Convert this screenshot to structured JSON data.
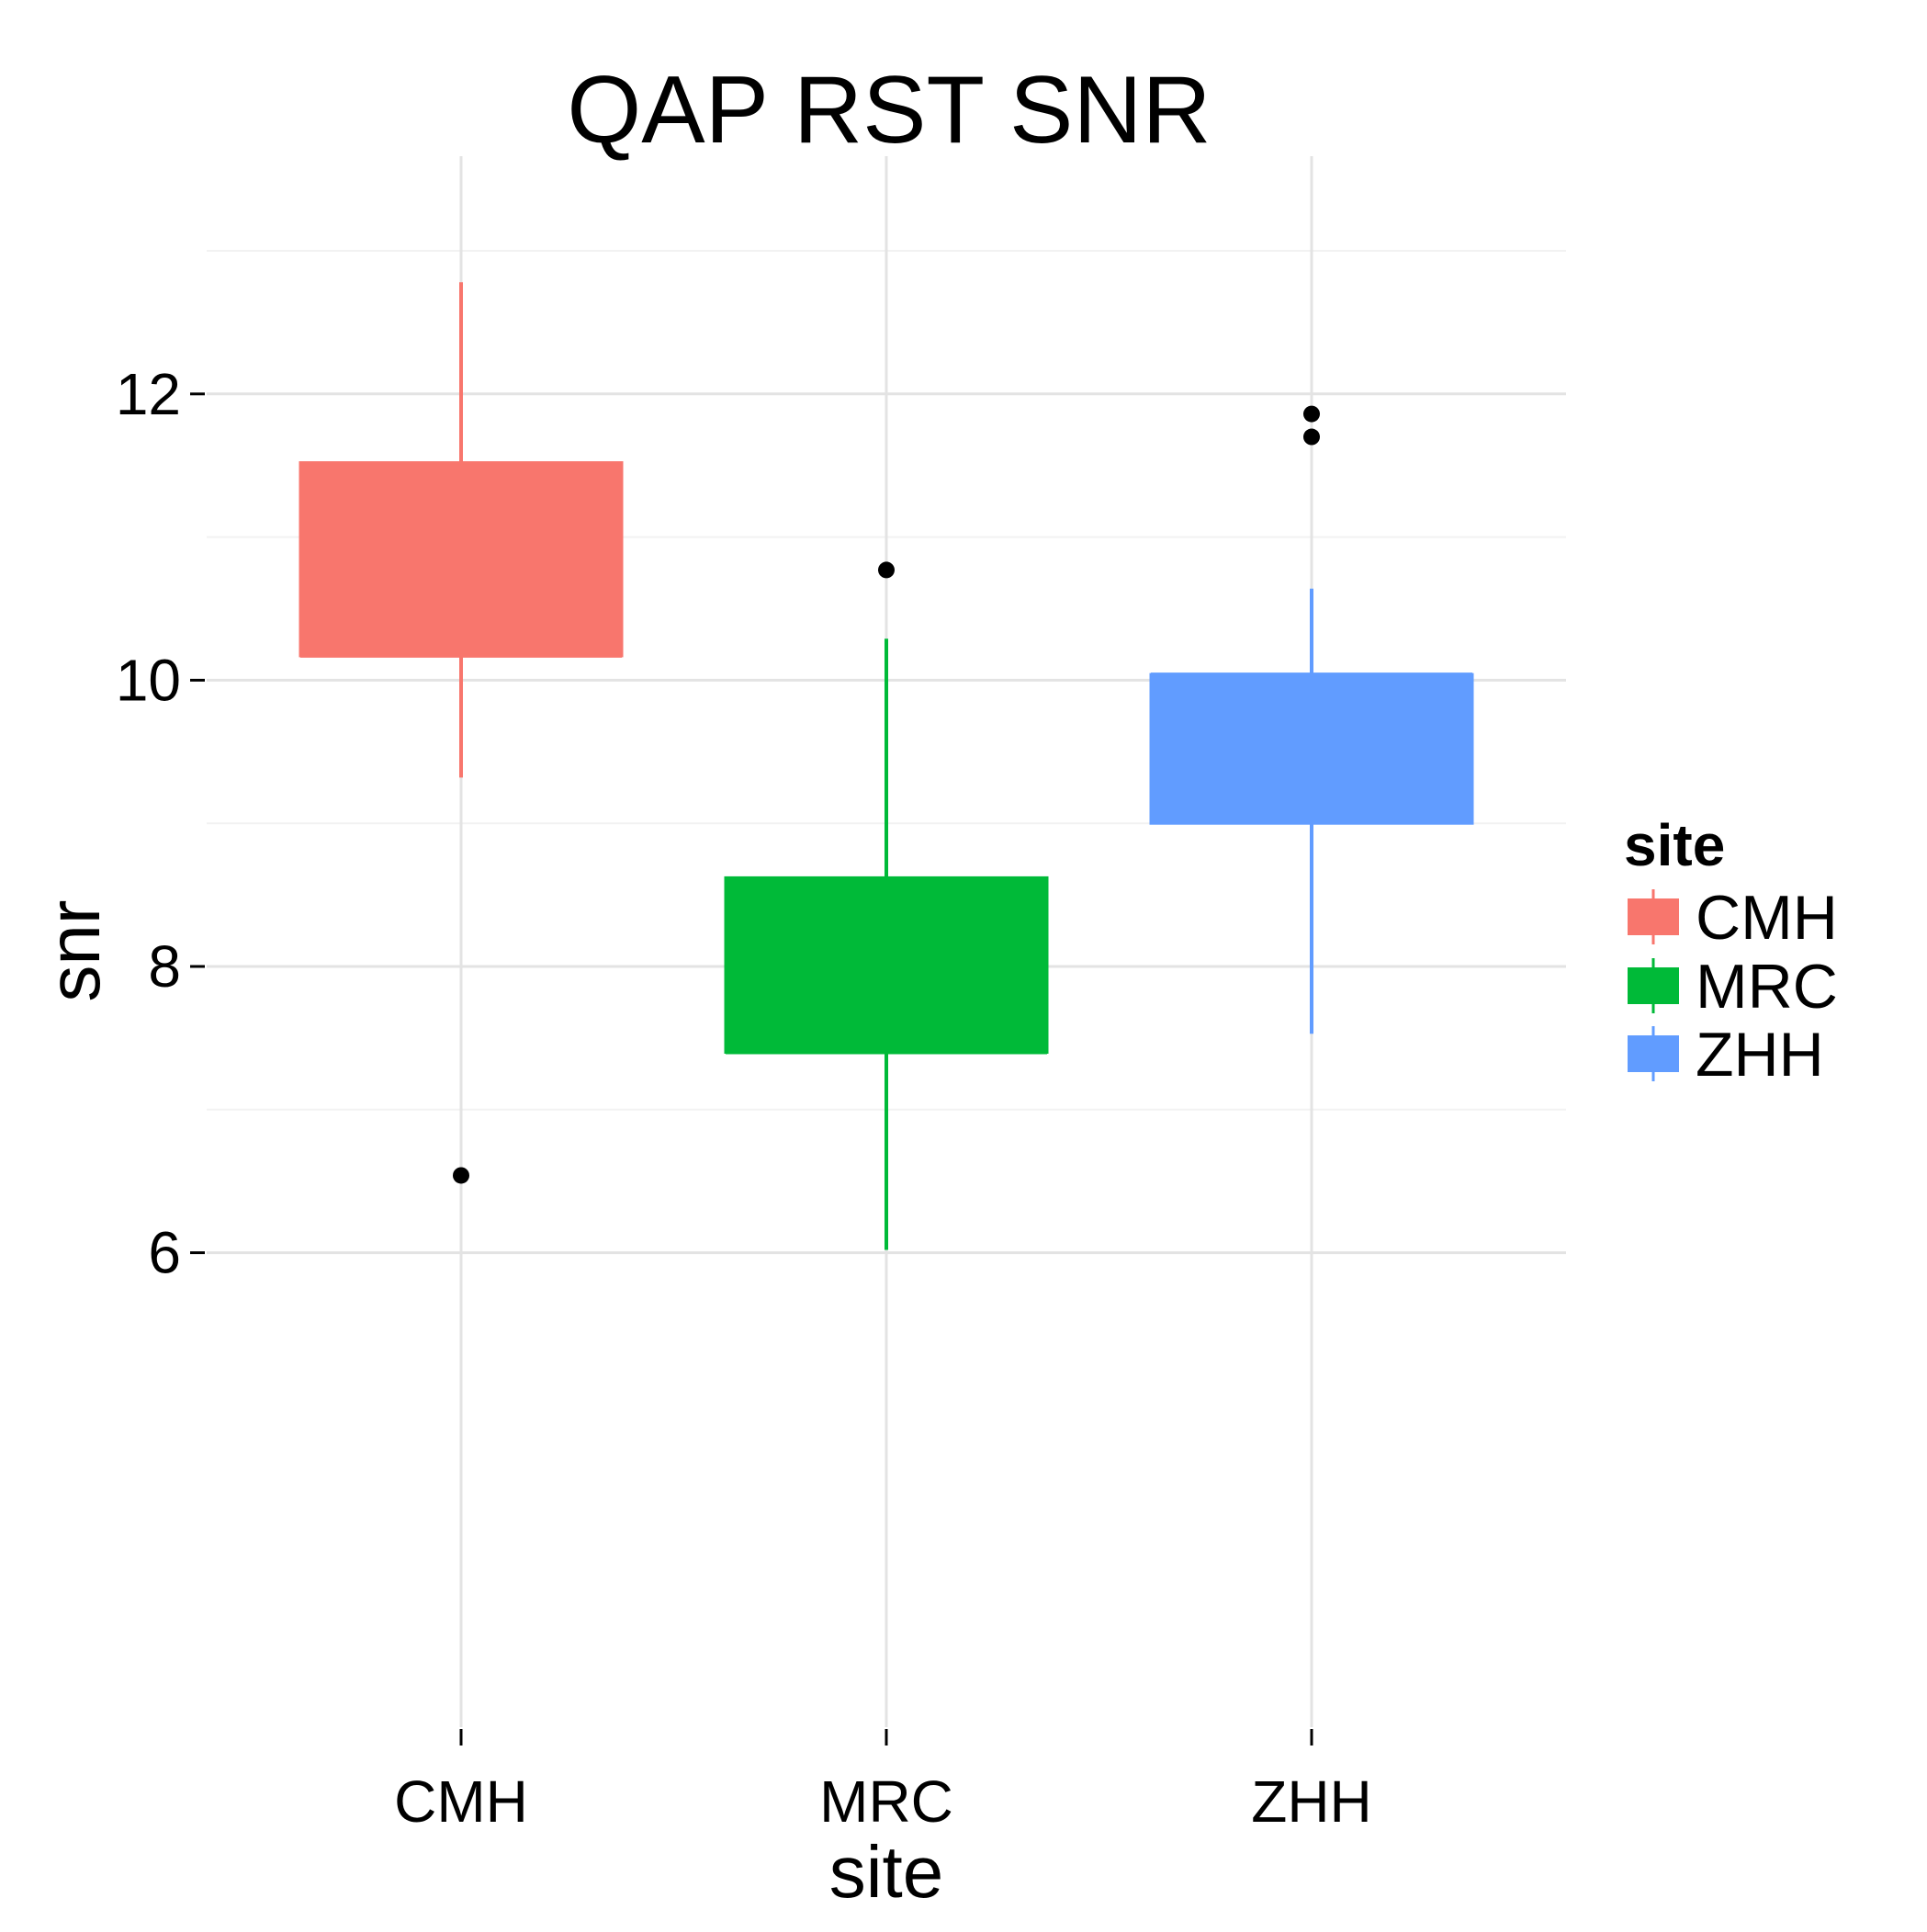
{
  "chart_data": {
    "type": "boxplot",
    "title": "QAP RST SNR",
    "xlabel": "site",
    "ylabel": "snr",
    "categories": [
      "CMH",
      "MRC",
      "ZHH"
    ],
    "ylim": [
      5.7,
      13.3
    ],
    "yticks": [
      6,
      8,
      10,
      12
    ],
    "ytick_labels": [
      "6",
      "8",
      "10",
      "12"
    ],
    "grid": true,
    "legend": {
      "title": "site",
      "position": "right",
      "entries": [
        "CMH",
        "MRC",
        "ZHH"
      ]
    },
    "series": [
      {
        "name": "CMH",
        "color": "#F8766D",
        "whisker_low": 9.32,
        "q1": 10.17,
        "median": 10.17,
        "q3": 11.52,
        "whisker_high": 12.78,
        "outliers": [
          6.54
        ]
      },
      {
        "name": "MRC",
        "color": "#00BA38",
        "whisker_low": 6.02,
        "q1": 7.4,
        "median": 7.4,
        "q3": 8.62,
        "whisker_high": 10.29,
        "outliers": [
          10.77
        ]
      },
      {
        "name": "ZHH",
        "color": "#619CFF",
        "whisker_low": 7.53,
        "q1": 9.0,
        "median": 10.04,
        "q3": 10.04,
        "whisker_high": 10.64,
        "outliers": [
          11.7,
          11.86
        ]
      }
    ]
  }
}
